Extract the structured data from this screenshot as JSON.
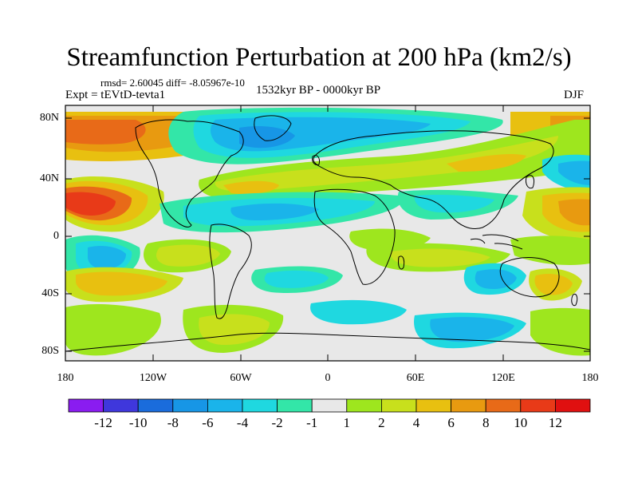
{
  "title": "Streamfunction Perturbation at 200 hPa (km2/s)",
  "stats_line": "rmsd= 2.60045 diff= -8.05967e-10",
  "experiment": "Expt = tEVtD-tevta1",
  "period": "1532kyr BP - 0000kyr BP",
  "season": "DJF",
  "lat_labels": [
    "80N",
    "40N",
    "0",
    "40S",
    "80S"
  ],
  "lon_labels": [
    "180",
    "120W",
    "60W",
    "0",
    "60E",
    "120E",
    "180"
  ],
  "colorbar": {
    "labels": [
      "-12",
      "-10",
      "-8",
      "-6",
      "-4",
      "-2",
      "-1",
      "1",
      "2",
      "4",
      "6",
      "8",
      "10",
      "12"
    ],
    "colors": [
      "#8a1cf0",
      "#3f37dc",
      "#1a6cdc",
      "#1796e6",
      "#1ab4ea",
      "#1fd8e0",
      "#33e6a8",
      "#e8e8e8",
      "#9ee61e",
      "#c8e01c",
      "#e8c010",
      "#e89a10",
      "#e86a18",
      "#e83a18",
      "#e01010"
    ]
  }
}
